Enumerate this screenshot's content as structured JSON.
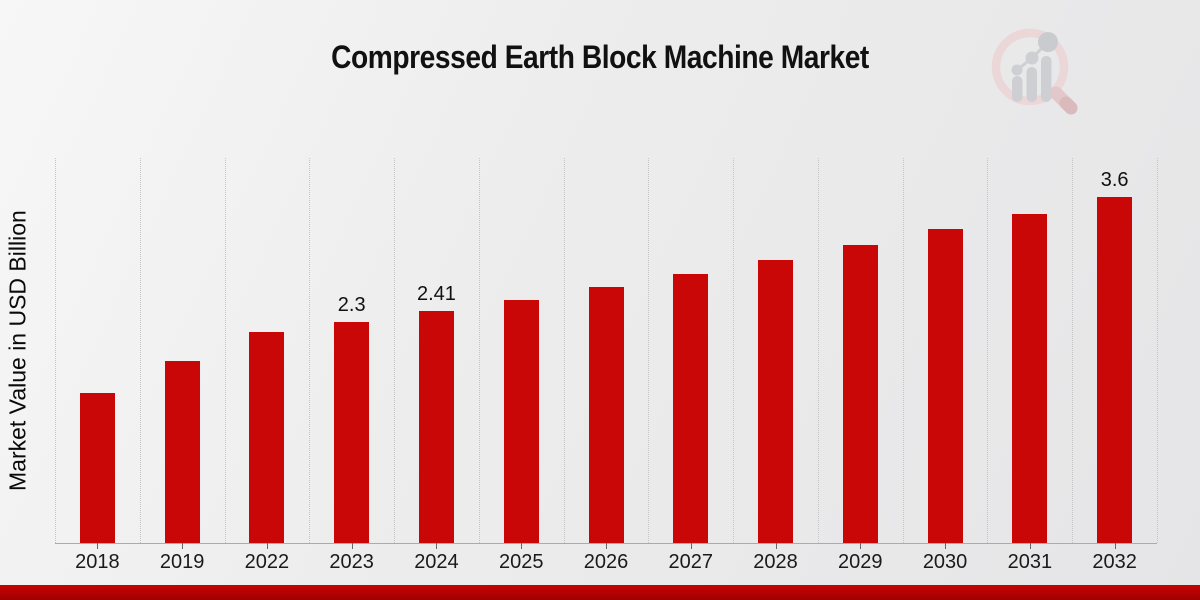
{
  "icons": {
    "watermark": "magnifier-growth-chart-logo"
  },
  "colors": {
    "bar": "#c90707",
    "grid": "#c4c4c4",
    "axis": "#ababab",
    "footer_top": "#c60202",
    "footer_bottom": "#9e0000",
    "title_text": "#111111",
    "label_text": "#1a1a1a"
  },
  "chart_data": {
    "type": "bar",
    "title": "Compressed Earth Block Machine Market",
    "xlabel": "",
    "ylabel": "Market Value in USD Billion",
    "categories": [
      "2018",
      "2019",
      "2022",
      "2023",
      "2024",
      "2025",
      "2026",
      "2027",
      "2028",
      "2029",
      "2030",
      "2031",
      "2032"
    ],
    "values": [
      1.56,
      1.89,
      2.19,
      2.3,
      2.41,
      2.53,
      2.66,
      2.8,
      2.94,
      3.1,
      3.26,
      3.42,
      3.6
    ],
    "data_labels": {
      "2023": "2.3",
      "2024": "2.41",
      "2032": "3.6"
    },
    "ylim": [
      0,
      4
    ],
    "y_axis_ticks": "none",
    "grid": "vertical-dotted",
    "legend": "none",
    "bar_color": "#c90707"
  }
}
